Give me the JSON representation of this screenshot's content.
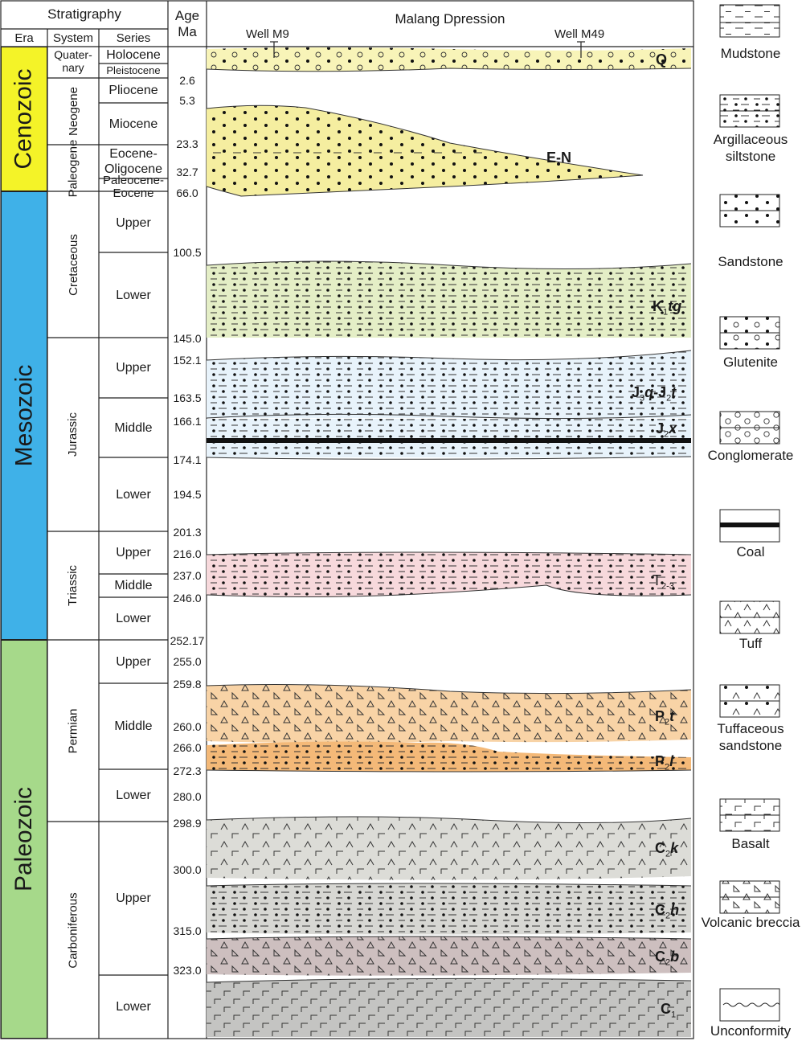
{
  "header": {
    "stratigraphy": "Stratigraphy",
    "era": "Era",
    "system": "System",
    "series": "Series",
    "age_line1": "Age",
    "age_line2": "Ma",
    "section_title": "Malang Dpression"
  },
  "eras": [
    "Cenozoic",
    "Mesozoic",
    "Paleozoic"
  ],
  "era_colors": {
    "Cenozoic": "#f4f328",
    "Mesozoic": "#3fb1e8",
    "Paleozoic": "#a6d98a"
  },
  "systems": {
    "quaternary": "Quater-nary",
    "neogene": "Neogene",
    "paleogene": "Paleogene",
    "cretaceous": "Cretaceous",
    "jurassic": "Jurassic",
    "triassic": "Triassic",
    "permian": "Permian",
    "carboniferous": "Carboniferous"
  },
  "series": {
    "holocene": "Holocene",
    "pleistocene": "Pleistocene",
    "pliocene": "Pliocene",
    "miocene": "Miocene",
    "eocene_oligocene": "Eocene-Oligocene",
    "paleocene_eocene": "Paleocene-Eocene",
    "cret_upper": "Upper",
    "cret_lower": "Lower",
    "jur_upper": "Upper",
    "jur_middle": "Middle",
    "jur_lower": "Lower",
    "tri_upper": "Upper",
    "tri_middle": "Middle",
    "tri_lower": "Lower",
    "perm_upper": "Upper",
    "perm_middle": "Middle",
    "perm_lower": "Lower",
    "carb_upper": "Upper",
    "carb_lower": "Lower"
  },
  "ages": [
    "2.6",
    "5.3",
    "23.3",
    "32.7",
    "66.0",
    "100.5",
    "145.0",
    "152.1",
    "163.5",
    "166.1",
    "174.1",
    "194.5",
    "201.3",
    "216.0",
    "237.0",
    "246.0",
    "252.17",
    "255.0",
    "259.8",
    "260.0",
    "266.0",
    "272.3",
    "280.0",
    "298.9",
    "300.0",
    "315.0",
    "323.0"
  ],
  "wells": [
    "Well M9",
    "Well M49"
  ],
  "formations": {
    "q": "Q",
    "en": "E-N",
    "k1tg": {
      "main": "K",
      "sub": "1",
      "ital": "tg"
    },
    "j3q_j2t": {
      "a": "J",
      "a_sub": "3",
      "a_ital": "q",
      "b": "-J",
      "b_sub": "2",
      "b_ital": "t"
    },
    "j2x": {
      "main": "J",
      "sub": "2",
      "ital": "x"
    },
    "t23": {
      "main": "T",
      "sub": "2-3"
    },
    "p2t": {
      "main": "P",
      "sub": "2",
      "ital": "t"
    },
    "p2l": {
      "main": "P",
      "sub": "2",
      "ital": "l"
    },
    "c2k": {
      "main": "C",
      "sub": "2",
      "ital": "k"
    },
    "c2h": {
      "main": "C",
      "sub": "2",
      "ital": "h"
    },
    "c2b": {
      "main": "C",
      "sub": "2",
      "ital": "b"
    },
    "c1": {
      "main": "C",
      "sub": "1"
    }
  },
  "unit_colors": {
    "q": "#f8f4b8",
    "en": "#f5eea0",
    "k1tg": "#e4eec6",
    "jura": "#e8f3fb",
    "tri": "#f7d9dc",
    "p2t": "#f8d3a6",
    "p2l": "#f4b978",
    "c2k": "#dcdcd7",
    "c2h": "#d7d7d3",
    "c2b": "#cdbfbf",
    "c1": "#c4c4c2"
  },
  "legend": [
    {
      "label": "Mudstone",
      "icon": "mudstone-pattern"
    },
    {
      "label": "Argillaceous siltstone",
      "icon": "siltstone-pattern"
    },
    {
      "label": "Sandstone",
      "icon": "sandstone-pattern"
    },
    {
      "label": "Glutenite",
      "icon": "glutenite-pattern"
    },
    {
      "label": "Conglomerate",
      "icon": "conglomerate-pattern"
    },
    {
      "label": "Coal",
      "icon": "coal-pattern"
    },
    {
      "label": "Tuff",
      "icon": "tuff-pattern"
    },
    {
      "label": "Tuffaceous sandstone",
      "icon": "tuffaceous-sandstone-pattern"
    },
    {
      "label": "Basalt",
      "icon": "basalt-pattern"
    },
    {
      "label": "Volcanic breccia",
      "icon": "volcanic-breccia-pattern"
    },
    {
      "label": "Unconformity",
      "icon": "unconformity-line"
    }
  ]
}
